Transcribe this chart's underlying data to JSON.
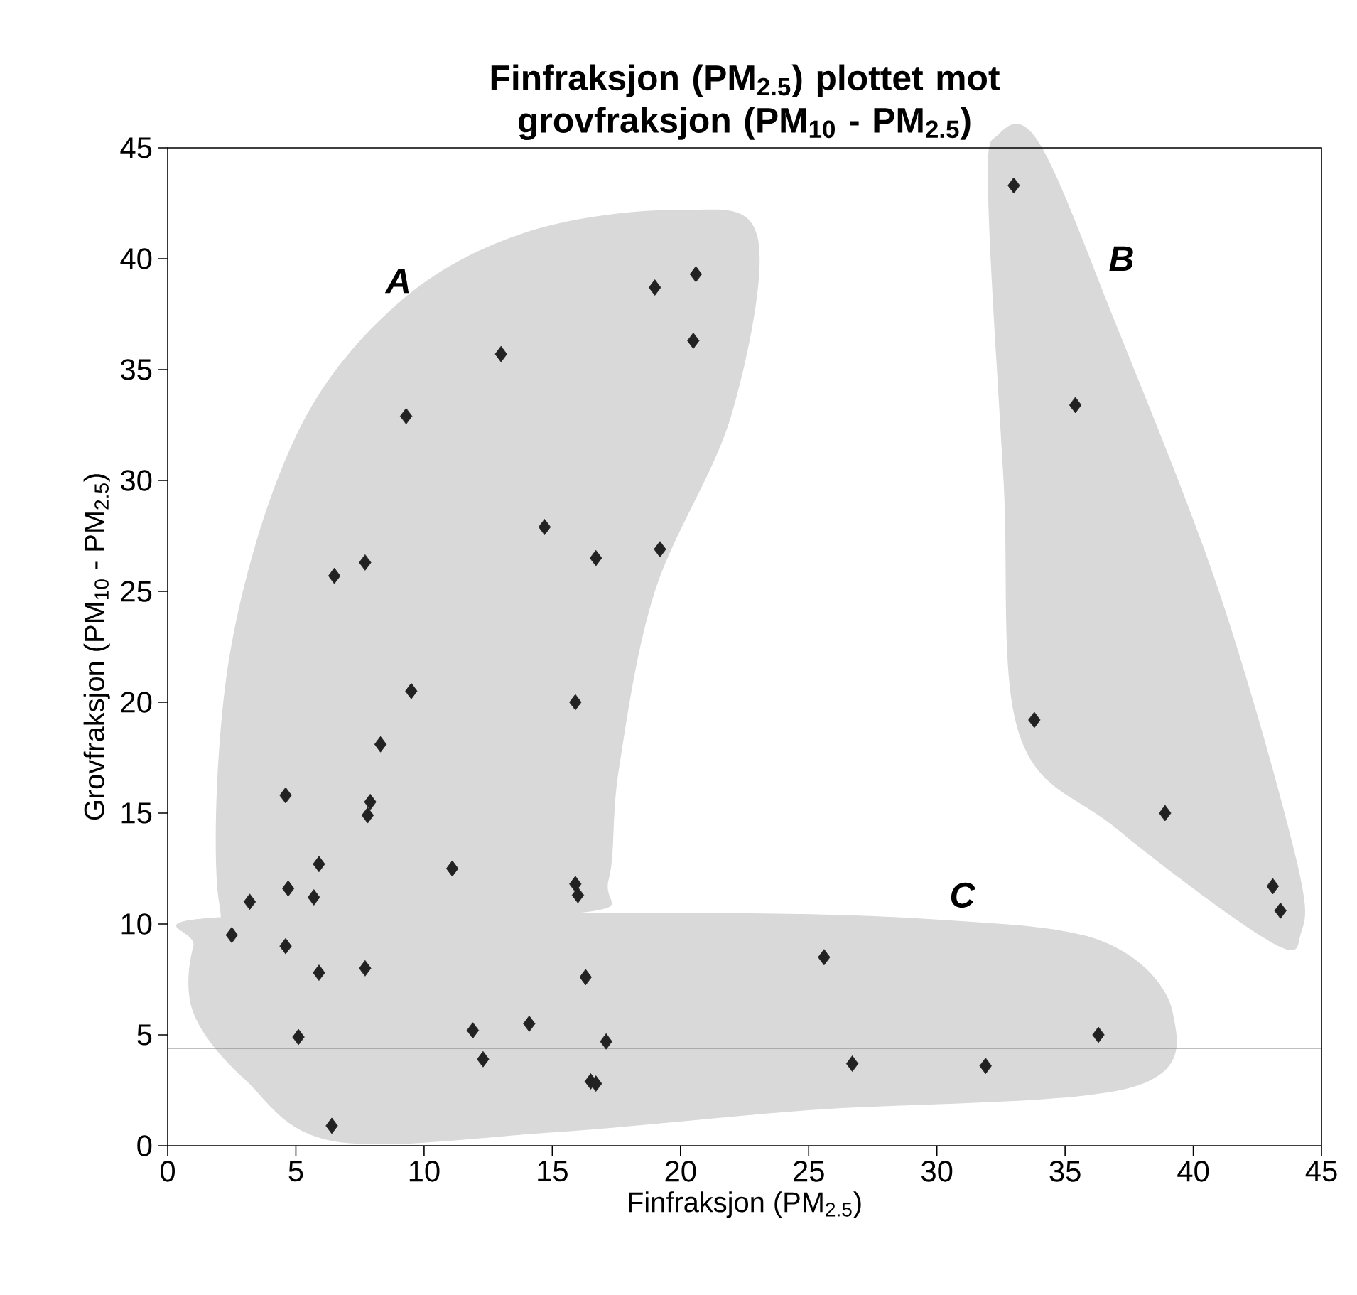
{
  "chart_data": {
    "type": "scatter",
    "title": "Finfraksjon (PM$_{2.5}$) plottet mot grovfraksjon (PM$_{10}$ - PM$_{2.5}$)",
    "xlabel": "Finfraksjon (PM$_{2.5}$)",
    "ylabel": "Grovfraksjon (PM$_{10}$ - PM$_{2.5}$)",
    "xlim": [
      0,
      45
    ],
    "ylim": [
      0,
      45
    ],
    "xticks": [
      0,
      5,
      10,
      15,
      20,
      25,
      30,
      35,
      40,
      45
    ],
    "yticks": [
      0,
      5,
      10,
      15,
      20,
      25,
      30,
      35,
      40,
      45
    ],
    "marker": "diamond",
    "ref_lines": [
      {
        "axis": "y",
        "value": 4.4,
        "color": "#808080"
      }
    ],
    "annotations": [
      "*A*",
      "*B*",
      "*C*"
    ],
    "series": [
      {
        "color": "#222222",
        "x": [
          20.6,
          19,
          20.5,
          13,
          9.3,
          14.7,
          19.2,
          16.7,
          7.7,
          6.5,
          9.5,
          15.9,
          8.3,
          4.6,
          7.9,
          7.8,
          11.1,
          5.9,
          4.7,
          5.7,
          15.9,
          16,
          3.2,
          2.5,
          4.6,
          5.9,
          7.7,
          16.3,
          25.6,
          5.1,
          11.9,
          14.1,
          12.3,
          17.1,
          16.5,
          16.7,
          6.4,
          26.7,
          31.9,
          36.3,
          33,
          35.4,
          33.8,
          38.9,
          43.1,
          43.4
        ],
        "values": [
          39.3,
          38.7,
          36.3,
          35.7,
          32.9,
          27.9,
          26.9,
          26.5,
          26.3,
          25.7,
          20.5,
          20,
          18.1,
          15.8,
          15.5,
          14.9,
          12.5,
          12.7,
          11.6,
          11.2,
          11.8,
          11.3,
          11,
          9.5,
          9,
          7.8,
          8,
          7.6,
          8.5,
          4.9,
          5.2,
          5.5,
          3.9,
          4.7,
          2.9,
          2.8,
          0.9,
          3.7,
          3.6,
          5,
          43.3,
          33.4,
          19.2,
          15,
          11.7,
          10.6
        ]
      }
    ]
  }
}
